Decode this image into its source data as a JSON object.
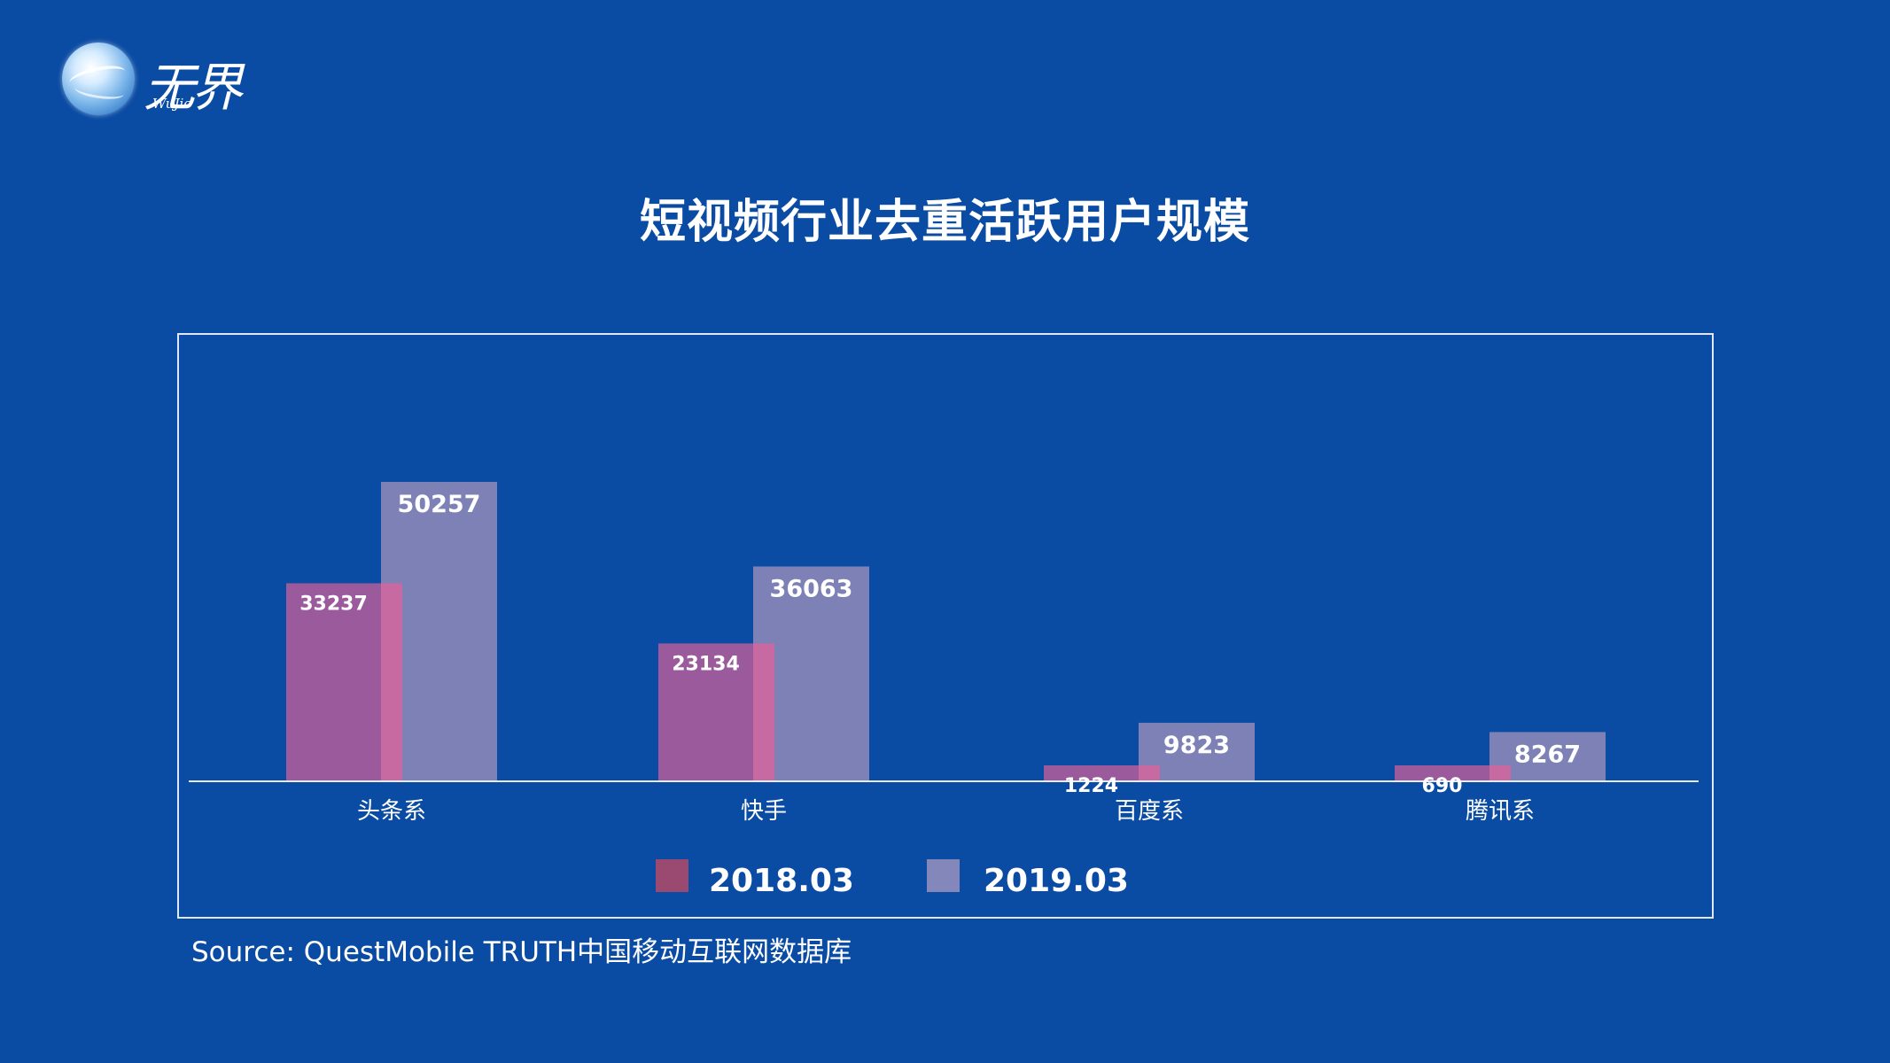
{
  "logo": {
    "brand": "无界",
    "brand_sub": "WuJie"
  },
  "title": "短视频行业去重活跃用户规模",
  "source": "Source: QuestMobile TRUTH中国移动互联网数据库",
  "colors": {
    "background": "#0a4ba4",
    "series_2018": "#9a5a9c",
    "series_2019": "#7d81b6",
    "legend_2018": "#9a4a70",
    "legend_2019": "#8487ba",
    "overlap": "#c86aa2"
  },
  "chart_data": {
    "type": "bar",
    "categories": [
      "头条系",
      "快手",
      "百度系",
      "腾讯系"
    ],
    "series": [
      {
        "name": "2018.03",
        "values": [
          33237,
          23134,
          1224,
          690
        ]
      },
      {
        "name": "2019.03",
        "values": [
          50257,
          36063,
          9823,
          8267
        ]
      }
    ],
    "legend_placement": "bottom",
    "grid": false,
    "ylim": [
      0,
      50257
    ]
  }
}
